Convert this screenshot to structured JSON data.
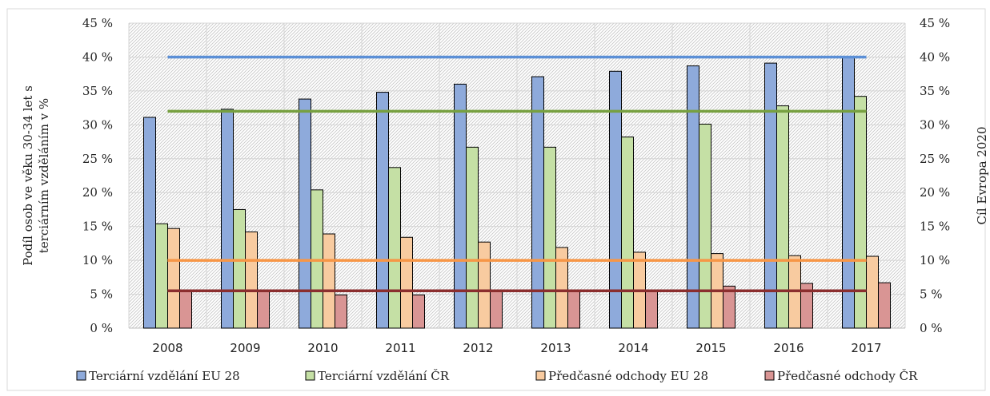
{
  "chart_data": {
    "type": "bar",
    "categories": [
      "2008",
      "2009",
      "2010",
      "2011",
      "2012",
      "2013",
      "2014",
      "2015",
      "2016",
      "2017"
    ],
    "series": [
      {
        "name": "Terciární vzdělání EU 28",
        "color": "#8eaadb",
        "values": [
          31.1,
          32.3,
          33.8,
          34.8,
          36.0,
          37.1,
          37.9,
          38.7,
          39.1,
          39.9
        ]
      },
      {
        "name": "Terciární vzdělání ČR",
        "color": "#c5e0a5",
        "values": [
          15.4,
          17.5,
          20.4,
          23.7,
          26.7,
          26.7,
          28.2,
          30.1,
          32.8,
          34.2
        ]
      },
      {
        "name": "Předčasné odchody EU 28",
        "color": "#f8cba0",
        "values": [
          14.7,
          14.2,
          13.9,
          13.4,
          12.7,
          11.9,
          11.2,
          11.0,
          10.7,
          10.6
        ]
      },
      {
        "name": "Předčasné odchody ČR",
        "color": "#d99594",
        "values": [
          5.6,
          5.5,
          4.9,
          4.9,
          5.5,
          5.4,
          5.5,
          6.2,
          6.6,
          6.7
        ]
      }
    ],
    "targets": [
      {
        "value": 40,
        "color": "#5b8fd6"
      },
      {
        "value": 32,
        "color": "#77a040"
      },
      {
        "value": 10,
        "color": "#f79646"
      },
      {
        "value": 5.5,
        "color": "#8b2e2e"
      }
    ],
    "ylabel": "Podíl osob ve věku 30-34 let s terciárním vzděláním v %",
    "y2label": "Cíl Evropa 2020",
    "ylim": [
      0,
      45
    ],
    "y_ticks": [
      "0 %",
      "5 %",
      "10 %",
      "15 %",
      "20 %",
      "25 %",
      "30 %",
      "35 %",
      "40 %",
      "45 %"
    ],
    "y2_ticks": [
      "0 %",
      "5 %",
      "10 %",
      "15 %",
      "20 %",
      "25 %",
      "30 %",
      "35 %",
      "40 %",
      "45 %"
    ],
    "legend_position": "bottom",
    "grid": true
  }
}
